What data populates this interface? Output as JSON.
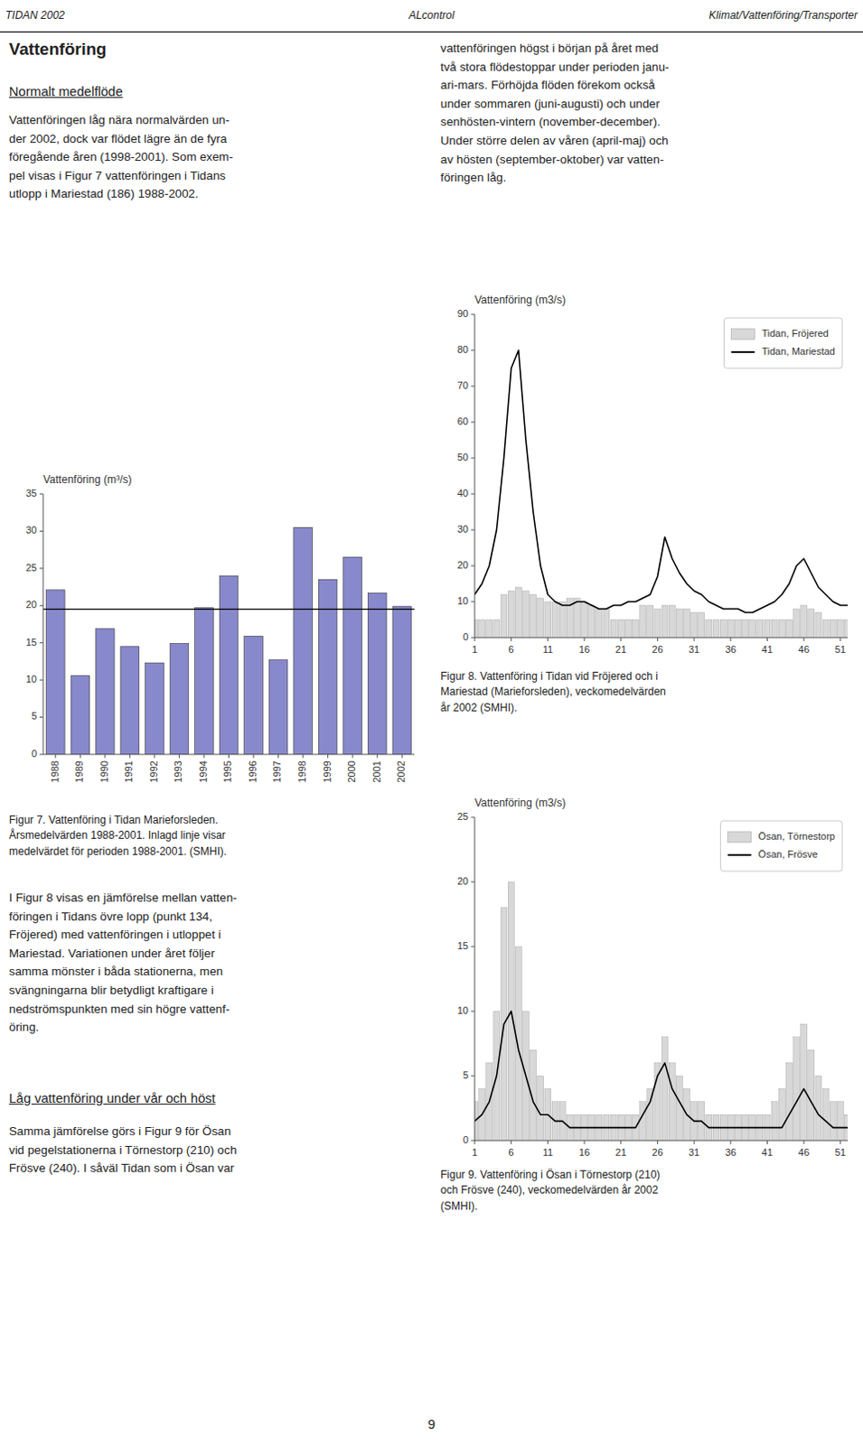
{
  "page_text": {
    "header": [
      "TIDAN 2002",
      "ALcontrol",
      "Klimat/Vattenföring/Transporter"
    ],
    "heading": "Vattenföring",
    "subheadings": [
      "Normalt medelflöde",
      "Låg vattenföring under vår och höst"
    ],
    "paragraphs": [
      "Vattenföringen låg nära normalvärden un-\nder 2002, dock var flödet lägre än de fyra\nföregående åren (1998-2001). Som exem-\npel visas i Figur 7 vattenföringen i Tidans\nutlopp i Mariestad (186) 1988-2002.",
      "vattenföringen högst i början på året med\ntvå stora flödestoppar under perioden janu-\nari-mars. Förhöjda flöden förekom också\nunder sommaren (juni-augusti) och under\nsenhösten-vintern (november-december).\nUnder större delen av våren (april-maj) och\nav hösten (september-oktober) var vatten-\nföringen låg.",
      "I Figur 8 visas en jämförelse mellan vatten-\nföringen i Tidans övre lopp (punkt 134,\nFröjered) med vattenföringen i utloppet i\nMariestad. Variationen under året följer\nsamma mönster i båda stationerna, men\nsvängningarna blir betydligt kraftigare i\nnedströmspunkten med sin högre vattenf-\nöring.",
      "Samma jämförelse görs i Figur 9 för Ösan\nvid pegelstationerna i Törnestorp (210) och\nFrösve (240). I såväl Tidan som i Ösan var"
    ],
    "captions": [
      "Figur 7. Vattenföring i Tidan Marieforsleden.\nÅrsmedelvärden 1988-2001. Inlagd linje visar\nmedelvärdet för perioden 1988-2001. (SMHI).",
      "Figur 8. Vattenföring i Tidan vid Fröjered och i\nMariestad (Marieforsleden), veckomedelvärden\når 2002 (SMHI).",
      "Figur 9. Vattenföring i Ösan i Törnestorp (210)\noch Frösve (240), veckomedelvärden år 2002\n(SMHI)."
    ],
    "page_number": "9"
  },
  "chart_data": [
    {
      "type": "bar",
      "title": "Vattenföring (m³/s)",
      "categories": [
        1988,
        1989,
        1990,
        1991,
        1992,
        1993,
        1994,
        1995,
        1996,
        1997,
        1998,
        1999,
        2000,
        2001,
        2002
      ],
      "values": [
        22.1,
        10.6,
        16.9,
        14.5,
        12.3,
        14.9,
        19.7,
        24.0,
        15.9,
        12.7,
        30.5,
        23.5,
        26.5,
        21.7,
        19.9
      ],
      "color": "#8888cc",
      "mean_line": 19.5,
      "ylim": [
        0,
        35
      ],
      "yticks": [
        0,
        5,
        10,
        15,
        20,
        25,
        30,
        35
      ]
    },
    {
      "type": "bar",
      "title": "Vattenföring (m3/s)",
      "x": [
        1,
        2,
        3,
        4,
        5,
        6,
        7,
        8,
        9,
        10,
        11,
        12,
        13,
        14,
        15,
        16,
        17,
        18,
        19,
        20,
        21,
        22,
        23,
        24,
        25,
        26,
        27,
        28,
        29,
        30,
        31,
        32,
        33,
        34,
        35,
        36,
        37,
        38,
        39,
        40,
        41,
        42,
        43,
        44,
        45,
        46,
        47,
        48,
        49,
        50,
        51,
        52
      ],
      "series": [
        {
          "name": "Tidan, Fröjered",
          "type": "bar",
          "color": "#d8d8d8",
          "values": [
            5,
            5,
            5,
            5,
            12,
            13,
            14,
            13,
            12,
            11,
            10,
            10,
            10,
            11,
            11,
            10,
            9,
            8,
            8,
            5,
            5,
            5,
            5,
            9,
            9,
            8,
            9,
            9,
            8,
            8,
            7,
            7,
            5,
            5,
            5,
            5,
            5,
            5,
            5,
            5,
            5,
            5,
            5,
            5,
            8,
            9,
            8,
            7,
            5,
            5,
            5,
            5
          ]
        },
        {
          "name": "Tidan, Mariestad",
          "type": "line",
          "color": "#000000",
          "values": [
            12,
            15,
            20,
            30,
            50,
            75,
            80,
            55,
            35,
            20,
            12,
            10,
            9,
            9,
            10,
            10,
            9,
            8,
            8,
            9,
            9,
            10,
            10,
            11,
            12,
            17,
            28,
            22,
            18,
            15,
            13,
            12,
            10,
            9,
            8,
            8,
            8,
            7,
            7,
            8,
            9,
            10,
            12,
            15,
            20,
            22,
            18,
            14,
            12,
            10,
            9,
            9
          ]
        }
      ],
      "xlim": [
        1,
        52
      ],
      "xticks": [
        1,
        6,
        11,
        16,
        21,
        26,
        31,
        36,
        41,
        46,
        51
      ],
      "ylim": [
        0,
        90
      ],
      "yticks": [
        0,
        10,
        20,
        30,
        40,
        50,
        60,
        70,
        80,
        90
      ],
      "legend": "upper right"
    },
    {
      "type": "bar",
      "title": "Vattenföring (m3/s)",
      "x": [
        1,
        2,
        3,
        4,
        5,
        6,
        7,
        8,
        9,
        10,
        11,
        12,
        13,
        14,
        15,
        16,
        17,
        18,
        19,
        20,
        21,
        22,
        23,
        24,
        25,
        26,
        27,
        28,
        29,
        30,
        31,
        32,
        33,
        34,
        35,
        36,
        37,
        38,
        39,
        40,
        41,
        42,
        43,
        44,
        45,
        46,
        47,
        48,
        49,
        50,
        51,
        52
      ],
      "series": [
        {
          "name": "Ösan, Törnestorp",
          "type": "bar",
          "color": "#d8d8d8",
          "values": [
            3,
            4,
            6,
            10,
            18,
            20,
            15,
            10,
            7,
            5,
            4,
            3,
            3,
            2,
            2,
            2,
            2,
            2,
            2,
            2,
            2,
            2,
            2,
            3,
            4,
            6,
            8,
            6,
            5,
            4,
            3,
            3,
            2,
            2,
            2,
            2,
            2,
            2,
            2,
            2,
            2,
            3,
            4,
            6,
            8,
            9,
            7,
            5,
            4,
            3,
            3,
            2
          ]
        },
        {
          "name": "Ösan, Frösve",
          "type": "line",
          "color": "#000000",
          "values": [
            1.5,
            2,
            3,
            5,
            9,
            10,
            7,
            5,
            3,
            2,
            2,
            1.5,
            1.5,
            1,
            1,
            1,
            1,
            1,
            1,
            1,
            1,
            1,
            1,
            2,
            3,
            5,
            6,
            4,
            3,
            2,
            1.5,
            1.5,
            1,
            1,
            1,
            1,
            1,
            1,
            1,
            1,
            1,
            1,
            1,
            2,
            3,
            4,
            3,
            2,
            1.5,
            1,
            1,
            1
          ]
        }
      ],
      "xlim": [
        1,
        52
      ],
      "xticks": [
        1,
        6,
        11,
        16,
        21,
        26,
        31,
        36,
        41,
        46,
        51
      ],
      "ylim": [
        0,
        25
      ],
      "yticks": [
        0,
        5,
        10,
        15,
        20,
        25
      ],
      "legend": "upper right"
    }
  ]
}
